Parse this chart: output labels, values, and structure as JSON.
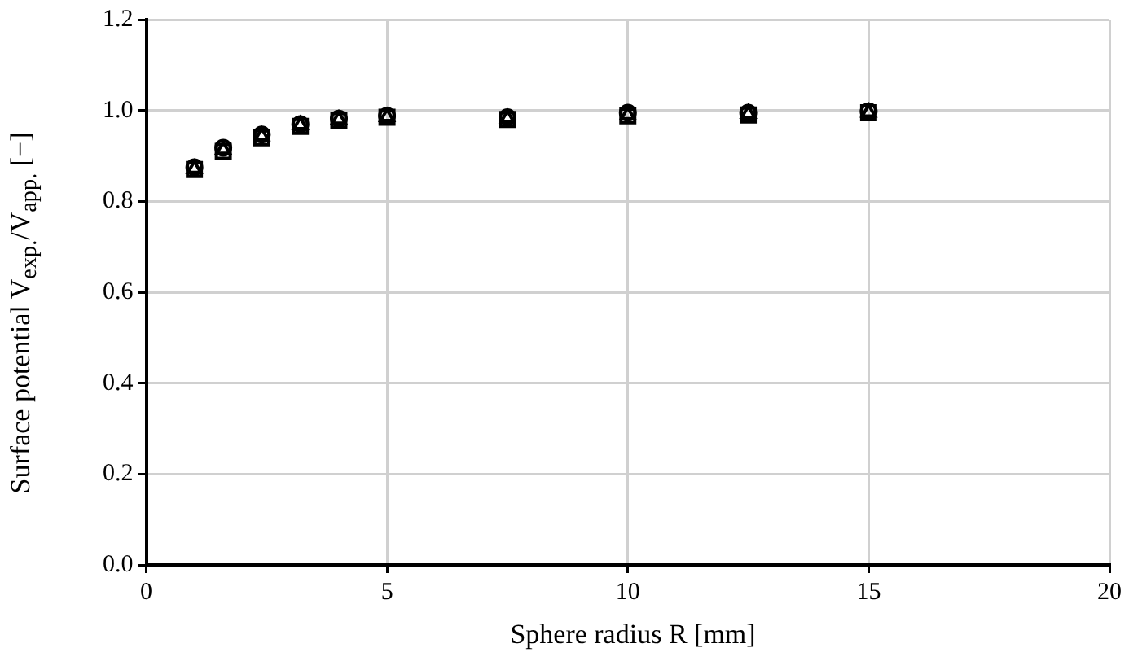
{
  "chart_data": {
    "type": "scatter",
    "xlabel": "Sphere radius R [mm]",
    "ylabel": "Surface potential V$_{exp.}$/V$_{app.}$ [−]",
    "x": [
      1,
      1.6,
      2.4,
      3.2,
      4,
      5,
      7.5,
      10,
      12.5,
      15
    ],
    "series": [
      {
        "color": "#000000",
        "marker": "square",
        "values": [
          0.87,
          0.91,
          0.94,
          0.965,
          0.978,
          0.985,
          0.98,
          0.988,
          0.99,
          0.995
        ]
      },
      {
        "color": "#000000",
        "marker": "circle",
        "values": [
          0.875,
          0.918,
          0.947,
          0.97,
          0.982,
          0.988,
          0.985,
          0.995,
          0.995,
          0.998
        ]
      },
      {
        "color": "#000000",
        "marker": "triangle",
        "values": [
          0.872,
          0.914,
          0.944,
          0.968,
          0.98,
          0.986,
          0.983,
          0.99,
          0.993,
          0.996
        ]
      }
    ],
    "xlim": [
      0,
      20
    ],
    "xticks": [
      0,
      5,
      10,
      15,
      20
    ],
    "ylim": [
      0,
      1.2
    ],
    "yticks": [
      {
        "value": 0,
        "label": "0.0"
      },
      {
        "value": 0.2,
        "label": "0.2"
      },
      {
        "value": 0.4,
        "label": "0.4"
      },
      {
        "value": 0.6,
        "label": "0.6"
      },
      {
        "value": 0.8,
        "label": "0.8"
      },
      {
        "value": 1,
        "label": "1.0"
      },
      {
        "value": 1.2,
        "label": "1.2"
      }
    ],
    "grid": true,
    "legend": false
  }
}
